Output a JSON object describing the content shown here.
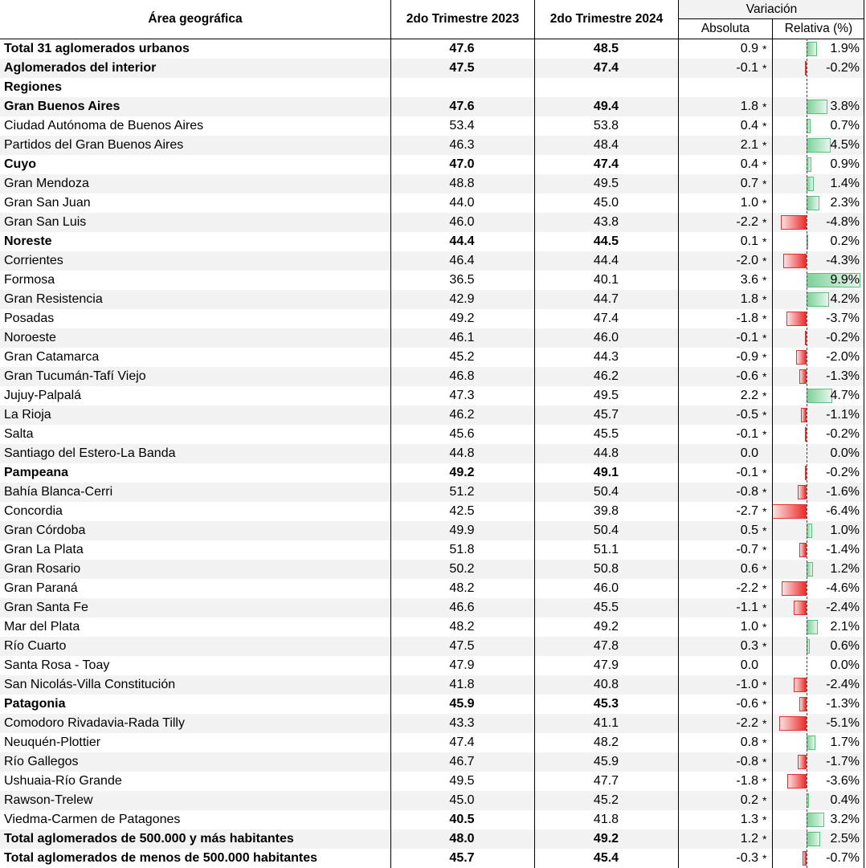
{
  "header": {
    "area": "Área geográfica",
    "col1": "2do Trimestre 2023",
    "col2": "2do Trimestre 2024",
    "variacion": "Variación",
    "absoluta": "Absoluta",
    "relativa": "Relativa (%)"
  },
  "colors": {
    "positive_bar": "#7dd19a",
    "negative_bar": "#ee2a2a"
  },
  "rows": [
    {
      "name": "Total 31 aglomerados urbanos",
      "v1": "47.6",
      "v2": "48.5",
      "abs": "0.9",
      "star": "*",
      "rel": "1.9%",
      "relv": 1.9,
      "bold": true
    },
    {
      "name": "Aglomerados del interior",
      "v1": "47.5",
      "v2": "47.4",
      "abs": "-0.1",
      "star": "*",
      "rel": "-0.2%",
      "relv": -0.2,
      "bold": true
    },
    {
      "name": "Regiones",
      "v1": "",
      "v2": "",
      "abs": "",
      "star": "",
      "rel": "",
      "relv": null,
      "bold": true
    },
    {
      "name": "Gran Buenos Aires",
      "v1": "47.6",
      "v2": "49.4",
      "abs": "1.8",
      "star": "*",
      "rel": "3.8%",
      "relv": 3.8,
      "bold": true
    },
    {
      "name": "Ciudad Autónoma de Buenos Aires",
      "v1": "53.4",
      "v2": "53.8",
      "abs": "0.4",
      "star": "*",
      "rel": "0.7%",
      "relv": 0.7,
      "bold": false
    },
    {
      "name": "Partidos del Gran Buenos Aires",
      "v1": "46.3",
      "v2": "48.4",
      "abs": "2.1",
      "star": "*",
      "rel": "4.5%",
      "relv": 4.5,
      "bold": false
    },
    {
      "name": "Cuyo",
      "v1": "47.0",
      "v2": "47.4",
      "abs": "0.4",
      "star": "*",
      "rel": "0.9%",
      "relv": 0.9,
      "bold": true
    },
    {
      "name": "Gran Mendoza",
      "v1": "48.8",
      "v2": "49.5",
      "abs": "0.7",
      "star": "*",
      "rel": "1.4%",
      "relv": 1.4,
      "bold": false
    },
    {
      "name": "Gran San Juan",
      "v1": "44.0",
      "v2": "45.0",
      "abs": "1.0",
      "star": "*",
      "rel": "2.3%",
      "relv": 2.3,
      "bold": false
    },
    {
      "name": "Gran San Luis",
      "v1": "46.0",
      "v2": "43.8",
      "abs": "-2.2",
      "star": "*",
      "rel": "-4.8%",
      "relv": -4.8,
      "bold": false
    },
    {
      "name": "Noreste",
      "v1": "44.4",
      "v2": "44.5",
      "abs": "0.1",
      "star": "*",
      "rel": "0.2%",
      "relv": 0.2,
      "bold": true
    },
    {
      "name": "Corrientes",
      "v1": "46.4",
      "v2": "44.4",
      "abs": "-2.0",
      "star": "*",
      "rel": "-4.3%",
      "relv": -4.3,
      "bold": false
    },
    {
      "name": "Formosa",
      "v1": "36.5",
      "v2": "40.1",
      "abs": "3.6",
      "star": "*",
      "rel": "9.9%",
      "relv": 9.9,
      "bold": false
    },
    {
      "name": "Gran Resistencia",
      "v1": "42.9",
      "v2": "44.7",
      "abs": "1.8",
      "star": "*",
      "rel": "4.2%",
      "relv": 4.2,
      "bold": false
    },
    {
      "name": "Posadas",
      "v1": "49.2",
      "v2": "47.4",
      "abs": "-1.8",
      "star": "*",
      "rel": "-3.7%",
      "relv": -3.7,
      "bold": false
    },
    {
      "name": "Noroeste",
      "v1": "46.1",
      "v2": "46.0",
      "abs": "-0.1",
      "star": "*",
      "rel": "-0.2%",
      "relv": -0.2,
      "bold": false
    },
    {
      "name": "Gran Catamarca",
      "v1": "45.2",
      "v2": "44.3",
      "abs": "-0.9",
      "star": "*",
      "rel": "-2.0%",
      "relv": -2.0,
      "bold": false
    },
    {
      "name": "Gran Tucumán-Tafí Viejo",
      "v1": "46.8",
      "v2": "46.2",
      "abs": "-0.6",
      "star": "*",
      "rel": "-1.3%",
      "relv": -1.3,
      "bold": false
    },
    {
      "name": "Jujuy-Palpalá",
      "v1": "47.3",
      "v2": "49.5",
      "abs": "2.2",
      "star": "*",
      "rel": "4.7%",
      "relv": 4.7,
      "bold": false
    },
    {
      "name": "La Rioja",
      "v1": "46.2",
      "v2": "45.7",
      "abs": "-0.5",
      "star": "*",
      "rel": "-1.1%",
      "relv": -1.1,
      "bold": false
    },
    {
      "name": "Salta",
      "v1": "45.6",
      "v2": "45.5",
      "abs": "-0.1",
      "star": "*",
      "rel": "-0.2%",
      "relv": -0.2,
      "bold": false
    },
    {
      "name": "Santiago del Estero-La Banda",
      "v1": "44.8",
      "v2": "44.8",
      "abs": "0.0",
      "star": "",
      "rel": "0.0%",
      "relv": 0.0,
      "bold": false
    },
    {
      "name": "Pampeana",
      "v1": "49.2",
      "v2": "49.1",
      "abs": "-0.1",
      "star": "*",
      "rel": "-0.2%",
      "relv": -0.2,
      "bold": true
    },
    {
      "name": "Bahía Blanca-Cerri",
      "v1": "51.2",
      "v2": "50.4",
      "abs": "-0.8",
      "star": "*",
      "rel": "-1.6%",
      "relv": -1.6,
      "bold": false
    },
    {
      "name": "Concordia",
      "v1": "42.5",
      "v2": "39.8",
      "abs": "-2.7",
      "star": "*",
      "rel": "-6.4%",
      "relv": -6.4,
      "bold": false
    },
    {
      "name": "Gran Córdoba",
      "v1": "49.9",
      "v2": "50.4",
      "abs": "0.5",
      "star": "*",
      "rel": "1.0%",
      "relv": 1.0,
      "bold": false
    },
    {
      "name": "Gran La Plata",
      "v1": "51.8",
      "v2": "51.1",
      "abs": "-0.7",
      "star": "*",
      "rel": "-1.4%",
      "relv": -1.4,
      "bold": false
    },
    {
      "name": "Gran Rosario",
      "v1": "50.2",
      "v2": "50.8",
      "abs": "0.6",
      "star": "*",
      "rel": "1.2%",
      "relv": 1.2,
      "bold": false
    },
    {
      "name": "Gran Paraná",
      "v1": "48.2",
      "v2": "46.0",
      "abs": "-2.2",
      "star": "*",
      "rel": "-4.6%",
      "relv": -4.6,
      "bold": false
    },
    {
      "name": "Gran Santa Fe",
      "v1": "46.6",
      "v2": "45.5",
      "abs": "-1.1",
      "star": "*",
      "rel": "-2.4%",
      "relv": -2.4,
      "bold": false
    },
    {
      "name": "Mar del Plata",
      "v1": "48.2",
      "v2": "49.2",
      "abs": "1.0",
      "star": "*",
      "rel": "2.1%",
      "relv": 2.1,
      "bold": false
    },
    {
      "name": "Río Cuarto",
      "v1": "47.5",
      "v2": "47.8",
      "abs": "0.3",
      "star": "*",
      "rel": "0.6%",
      "relv": 0.6,
      "bold": false
    },
    {
      "name": "Santa Rosa - Toay",
      "v1": "47.9",
      "v2": "47.9",
      "abs": "0.0",
      "star": "",
      "rel": "0.0%",
      "relv": 0.0,
      "bold": false
    },
    {
      "name": "San Nicolás-Villa Constitución",
      "v1": "41.8",
      "v2": "40.8",
      "abs": "-1.0",
      "star": "*",
      "rel": "-2.4%",
      "relv": -2.4,
      "bold": false
    },
    {
      "name": "Patagonia",
      "v1": "45.9",
      "v2": "45.3",
      "abs": "-0.6",
      "star": "*",
      "rel": "-1.3%",
      "relv": -1.3,
      "bold": true
    },
    {
      "name": "Comodoro Rivadavia-Rada Tilly",
      "v1": "43.3",
      "v2": "41.1",
      "abs": "-2.2",
      "star": "*",
      "rel": "-5.1%",
      "relv": -5.1,
      "bold": false
    },
    {
      "name": "Neuquén-Plottier",
      "v1": "47.4",
      "v2": "48.2",
      "abs": "0.8",
      "star": "*",
      "rel": "1.7%",
      "relv": 1.7,
      "bold": false
    },
    {
      "name": "Río Gallegos",
      "v1": "46.7",
      "v2": "45.9",
      "abs": "-0.8",
      "star": "*",
      "rel": "-1.7%",
      "relv": -1.7,
      "bold": false
    },
    {
      "name": "Ushuaia-Río Grande",
      "v1": "49.5",
      "v2": "47.7",
      "abs": "-1.8",
      "star": "*",
      "rel": "-3.6%",
      "relv": -3.6,
      "bold": false
    },
    {
      "name": "Rawson-Trelew",
      "v1": "45.0",
      "v2": "45.2",
      "abs": "0.2",
      "star": "*",
      "rel": "0.4%",
      "relv": 0.4,
      "bold": false
    },
    {
      "name": "Viedma-Carmen de Patagones",
      "v1": "40.5",
      "v2": "41.8",
      "abs": "1.3",
      "star": "*",
      "rel": "3.2%",
      "relv": 3.2,
      "bold": false,
      "boldVals": true
    },
    {
      "name": "Total aglomerados de 500.000 y más habitantes",
      "v1": "48.0",
      "v2": "49.2",
      "abs": "1.2",
      "star": "*",
      "rel": "2.5%",
      "relv": 2.5,
      "bold": true
    },
    {
      "name": "Total aglomerados de menos de 500.000 habitantes",
      "v1": "45.7",
      "v2": "45.4",
      "abs": "-0.3",
      "star": "*",
      "rel": "-0.7%",
      "relv": -0.7,
      "bold": true
    }
  ]
}
